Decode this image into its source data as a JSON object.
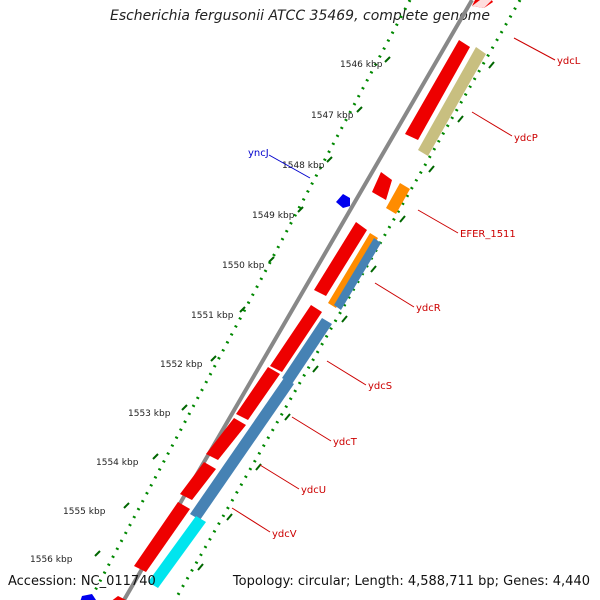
{
  "title": "Escherichia fergusonii ATCC 35469, complete genome",
  "accession": "Accession: NC_011740",
  "topology": "Topology: circular; Length: 4,588,711 bp; Genes: 4,440",
  "ticks": [
    {
      "label": "1546 kbp"
    },
    {
      "label": "1547 kbp"
    },
    {
      "label": "1548 kbp"
    },
    {
      "label": "1549 kbp"
    },
    {
      "label": "1550 kbp"
    },
    {
      "label": "1551 kbp"
    },
    {
      "label": "1552 kbp"
    },
    {
      "label": "1553 kbp"
    },
    {
      "label": "1554 kbp"
    },
    {
      "label": "1555 kbp"
    },
    {
      "label": "1556 kbp"
    }
  ],
  "gene_labels": [
    {
      "label": "ydcL",
      "color": "#cc0000"
    },
    {
      "label": "ydcP",
      "color": "#cc0000"
    },
    {
      "label": "yncJ",
      "color": "#0000cc"
    },
    {
      "label": "EFER_1511",
      "color": "#cc0000"
    },
    {
      "label": "ydcR",
      "color": "#cc0000"
    },
    {
      "label": "ydcS",
      "color": "#cc0000"
    },
    {
      "label": "ydcT",
      "color": "#cc0000"
    },
    {
      "label": "ydcU",
      "color": "#cc0000"
    },
    {
      "label": "ydcV",
      "color": "#cc0000"
    }
  ],
  "colors": {
    "cds": "#ee0000",
    "blue_feature": "#0000ee",
    "orange": "#ff8c00",
    "olive": "#c8bf80",
    "steelblue": "#4682b4",
    "cyan": "#00e5ee",
    "backbone": "#888888",
    "dotted": "#008800"
  }
}
